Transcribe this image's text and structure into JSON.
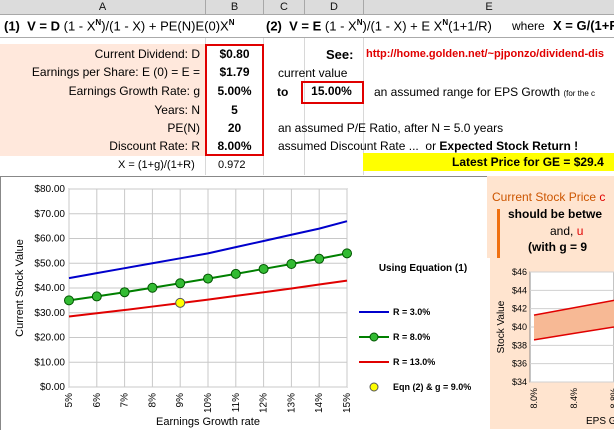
{
  "columns": [
    "A",
    "B",
    "C",
    "D",
    "E"
  ],
  "row1": {
    "eq1_num": "(1)",
    "eq1_pre": "V = D",
    "eq1_mid": "(1 - X",
    "eq1_sup": "N",
    "eq1_rest": ")/(1 - X) + PE(N)E(0)X",
    "eq1_sup2": "N",
    "eq2_num": "(2)",
    "eq2_pre": "V = E",
    "eq2_mid": "(1 - X",
    "eq2_sup": "N",
    "eq2_rest": ")/(1 - X) + E X",
    "eq2_sup2": "N",
    "eq2_tail": "(1+1/R)",
    "where": "where",
    "where_eq": "X = G/(1+F"
  },
  "rows": {
    "dividend_label": "Current Dividend: D",
    "dividend_value": "$0.80",
    "eps_label": "Earnings per Share: E (0) = E =",
    "eps_value": "$1.79",
    "eps_note": "current value",
    "growth_label": "Earnings Growth Rate: g",
    "growth_value": "5.00%",
    "growth_to": "to",
    "growth_value2": "15.00%",
    "growth_note": "an assumed range for EPS Growth",
    "growth_note_small": "(for the c",
    "years_label": "Years: N",
    "years_value": "5",
    "pe_label": "PE(N)",
    "pe_value": "20",
    "pe_note": "an assumed P/E Ratio, after N = 5.0 years",
    "discount_label": "Discount Rate: R",
    "discount_value": "8.00%",
    "discount_note": "assumed Discount Rate ...",
    "discount_or": "or",
    "expected_return": "Expected Stock Return !",
    "x_label": "X = (1+g)/(1+R)",
    "x_value": "0.972",
    "see_label": "See:",
    "see_link": "http://home.golden.net/~pjponzo/dividend-dis",
    "latest_price": "Latest Price for GE = $29.4"
  },
  "side_panel": {
    "line1_a": "Current Stock Price",
    "line1_b": "c",
    "line2": "should be betwe",
    "line3_a": "and,",
    "line3_b": "u",
    "line4": "(with g = 9"
  },
  "colors": {
    "blue": "#0000cc",
    "green": "#008000",
    "red": "#e00000",
    "yellow": "#ffff00",
    "panel": "#ffe4cf"
  },
  "chart_data": [
    {
      "type": "line",
      "title": "Using Equation (1)",
      "xlabel": "Earnings Growth rate",
      "ylabel": "Current Stock Value",
      "categories": [
        "5%",
        "6%",
        "7%",
        "8%",
        "9%",
        "10%",
        "11%",
        "12%",
        "13%",
        "14%",
        "15%"
      ],
      "ylim": [
        0,
        80
      ],
      "yticks": [
        "$0.00",
        "$10.00",
        "$20.00",
        "$30.00",
        "$40.00",
        "$50.00",
        "$60.00",
        "$70.00",
        "$80.00"
      ],
      "grid": true,
      "legend_position": "right",
      "series": [
        {
          "name": "R = 3.0%",
          "color": "#0000cc",
          "values": [
            44,
            46,
            48,
            50,
            52,
            54,
            56.5,
            59,
            61.5,
            64,
            67
          ]
        },
        {
          "name": "R = 8.0%",
          "color": "#008000",
          "values": [
            35,
            36.6,
            38.3,
            40.1,
            41.9,
            43.8,
            45.7,
            47.7,
            49.7,
            51.8,
            54
          ]
        },
        {
          "name": "R = 13.0%",
          "color": "#e00000",
          "values": [
            28.5,
            29.8,
            31.1,
            32.5,
            33.9,
            35.3,
            36.8,
            38.3,
            39.8,
            41.4,
            43
          ]
        }
      ],
      "marker_point": {
        "name": "Eqn (2) & g = 9.0%",
        "x": "9%",
        "y": 34
      }
    },
    {
      "type": "line",
      "ylabel": "Stock Value",
      "xlabel": "EPS G",
      "categories": [
        "8.0%",
        "8.4%",
        "8.8%"
      ],
      "ylim": [
        34,
        46
      ],
      "yticks": [
        "$34",
        "$36",
        "$38",
        "$40",
        "$42",
        "$44",
        "$46"
      ],
      "series": [
        {
          "name": "upper",
          "color": "#e00000",
          "values": [
            41.3,
            42.1,
            42.9
          ]
        },
        {
          "name": "lower",
          "color": "#e00000",
          "values": [
            38.6,
            39.3,
            40.0
          ]
        }
      ]
    }
  ]
}
